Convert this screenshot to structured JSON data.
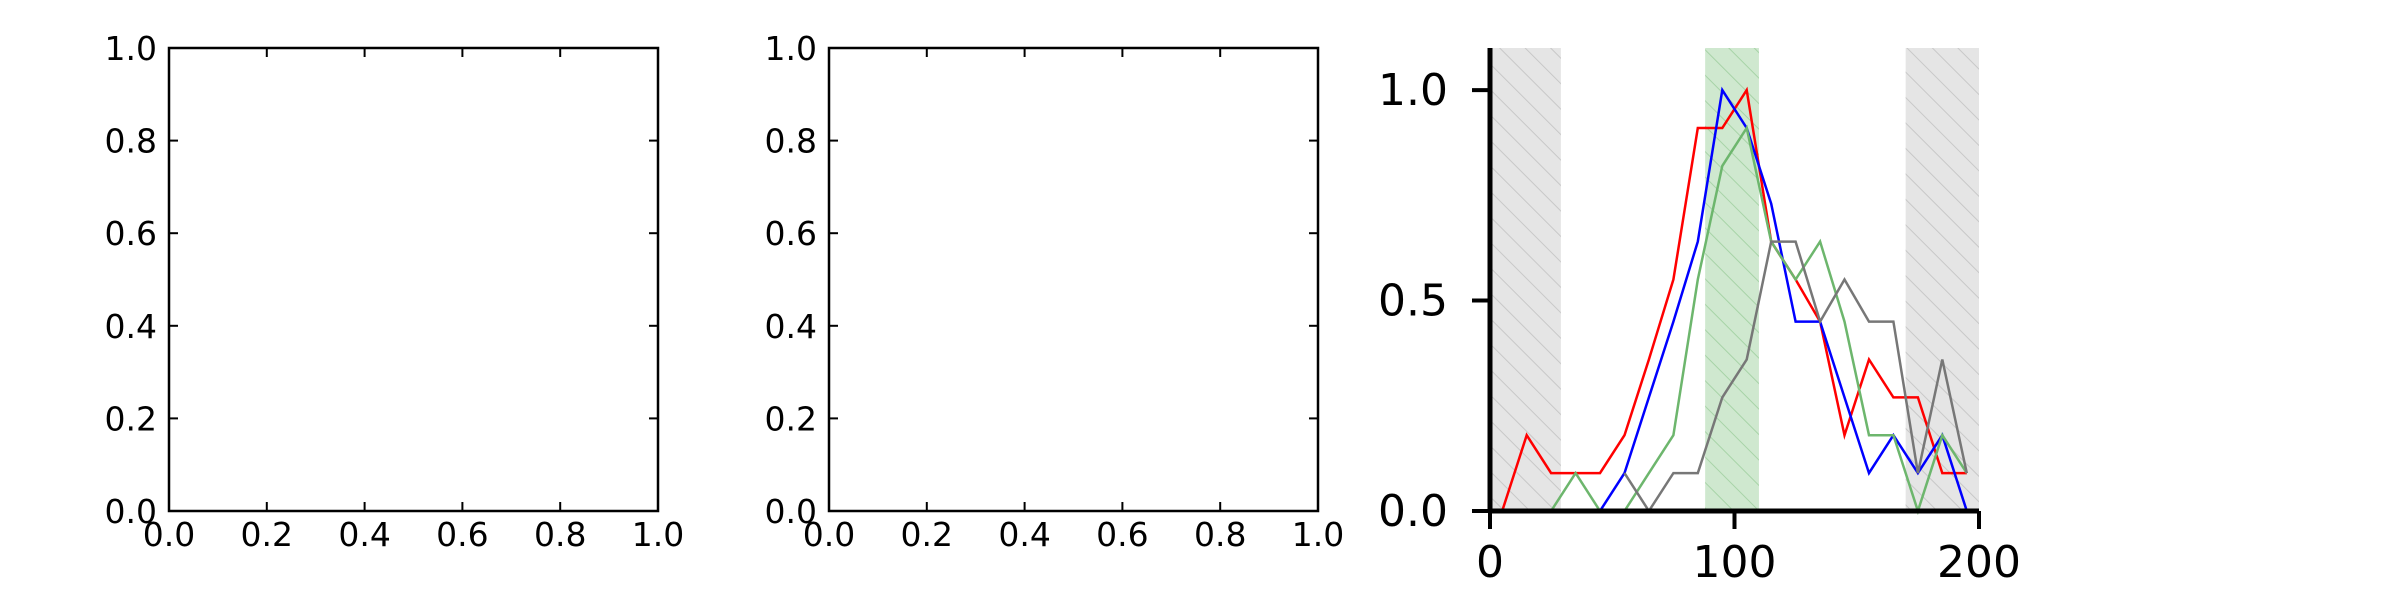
{
  "chart_data": [
    {
      "type": "line",
      "title": "",
      "xlabel": "",
      "ylabel": "",
      "xlim": [
        0,
        1
      ],
      "ylim": [
        0,
        1
      ],
      "x_ticks": [
        "0.0",
        "0.2",
        "0.4",
        "0.6",
        "0.8",
        "1.0"
      ],
      "y_ticks": [
        "0.0",
        "0.2",
        "0.4",
        "0.6",
        "0.8",
        "1.0"
      ],
      "grid": false,
      "series": []
    },
    {
      "type": "line",
      "title": "",
      "xlabel": "",
      "ylabel": "",
      "xlim": [
        0,
        1
      ],
      "ylim": [
        0,
        1
      ],
      "x_ticks": [
        "0.0",
        "0.2",
        "0.4",
        "0.6",
        "0.8",
        "1.0"
      ],
      "y_ticks": [
        "0.0",
        "0.2",
        "0.4",
        "0.6",
        "0.8",
        "1.0"
      ],
      "grid": false,
      "series": []
    },
    {
      "type": "line",
      "title": "",
      "xlabel": "",
      "ylabel": "",
      "xlim": [
        0,
        200
      ],
      "ylim": [
        0,
        1.1
      ],
      "x_ticks": [
        "0",
        "100",
        "200"
      ],
      "y_ticks": [
        "0.0",
        "0.5",
        "1.0"
      ],
      "grid": false,
      "shaded_regions": [
        {
          "x_start": 0,
          "x_end": 29,
          "color": "#e5e5e5",
          "hatch": true
        },
        {
          "x_start": 88,
          "x_end": 110,
          "color": "#cfe8cf",
          "hatch": true
        },
        {
          "x_start": 170,
          "x_end": 200,
          "color": "#e5e5e5",
          "hatch": true
        }
      ],
      "series": [
        {
          "color": "#ff0000",
          "x": [
            5,
            15,
            25,
            35,
            45,
            55,
            65,
            75,
            85,
            95,
            105,
            115,
            125,
            135,
            145,
            155,
            165,
            175,
            185,
            195
          ],
          "y": [
            0.0,
            0.18,
            0.09,
            0.09,
            0.09,
            0.18,
            0.36,
            0.55,
            0.91,
            0.91,
            1.0,
            0.64,
            0.55,
            0.45,
            0.18,
            0.36,
            0.27,
            0.27,
            0.09,
            0.09
          ]
        },
        {
          "color": "#0000ff",
          "x": [
            45,
            55,
            65,
            75,
            85,
            95,
            105,
            115,
            125,
            135,
            145,
            155,
            165,
            175,
            185,
            195
          ],
          "y": [
            0.0,
            0.09,
            0.27,
            0.45,
            0.64,
            1.0,
            0.91,
            0.73,
            0.45,
            0.45,
            0.27,
            0.09,
            0.18,
            0.09,
            0.18,
            0.0
          ]
        },
        {
          "color": "#6db66d",
          "x": [
            25,
            35,
            45,
            55,
            65,
            75,
            85,
            95,
            105,
            115,
            125,
            135,
            145,
            155,
            165,
            175,
            185,
            195
          ],
          "y": [
            0.0,
            0.09,
            0.0,
            0.0,
            0.09,
            0.18,
            0.55,
            0.82,
            0.91,
            0.64,
            0.55,
            0.64,
            0.45,
            0.18,
            0.18,
            0.0,
            0.18,
            0.09
          ]
        },
        {
          "color": "#777777",
          "x": [
            55,
            65,
            75,
            85,
            95,
            105,
            115,
            125,
            135,
            145,
            155,
            165,
            175,
            185,
            195
          ],
          "y": [
            0.09,
            0.0,
            0.09,
            0.09,
            0.27,
            0.36,
            0.64,
            0.64,
            0.45,
            0.55,
            0.45,
            0.45,
            0.09,
            0.36,
            0.09
          ]
        }
      ]
    }
  ]
}
